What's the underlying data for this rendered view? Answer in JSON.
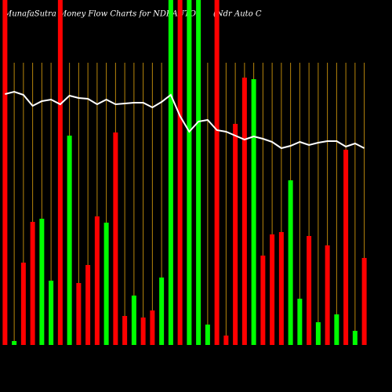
{
  "chart_data": {
    "type": "bar",
    "title": "MunafaSutra  Money Flow  Charts for NDRAUTO",
    "subtitle": "(Ndr Auto  C",
    "ylim": [
      0,
      440
    ],
    "values": [
      440,
      5,
      105,
      157,
      161,
      82,
      440,
      267,
      79,
      102,
      164,
      156,
      271,
      37,
      63,
      35,
      44,
      86,
      440,
      440,
      440,
      440,
      26,
      440,
      12,
      282,
      341,
      339,
      114,
      141,
      144,
      210,
      59,
      139,
      29,
      127,
      39,
      249,
      18,
      111
    ],
    "colors": [
      "#ff0000",
      "#00ff00",
      "#ff0000",
      "#ff0000",
      "#00ff00",
      "#00ff00",
      "#ff0000",
      "#00ff00",
      "#ff0000",
      "#ff0000",
      "#ff0000",
      "#00ff00",
      "#ff0000",
      "#ff0000",
      "#00ff00",
      "#ff0000",
      "#ff0000",
      "#00ff00",
      "#00ff00",
      "#ff0000",
      "#00ff00",
      "#00ff00",
      "#00ff00",
      "#ff0000",
      "#ff0000",
      "#ff0000",
      "#ff0000",
      "#00ff00",
      "#ff0000",
      "#ff0000",
      "#ff0000",
      "#00ff00",
      "#00ff00",
      "#ff0000",
      "#00ff00",
      "#ff0000",
      "#00ff00",
      "#ff0000",
      "#00ff00",
      "#ff0000"
    ],
    "grid_color": "#b8860b",
    "line": {
      "color": "#ffffff",
      "values": [
        320,
        323,
        319,
        305,
        311,
        313,
        307,
        318,
        315,
        314,
        307,
        313,
        307,
        308,
        309,
        309,
        303,
        310,
        319,
        292,
        272,
        285,
        287,
        274,
        272,
        267,
        262,
        266,
        263,
        259,
        251,
        254,
        259,
        255,
        258,
        260,
        260,
        253,
        257,
        251
      ]
    }
  }
}
